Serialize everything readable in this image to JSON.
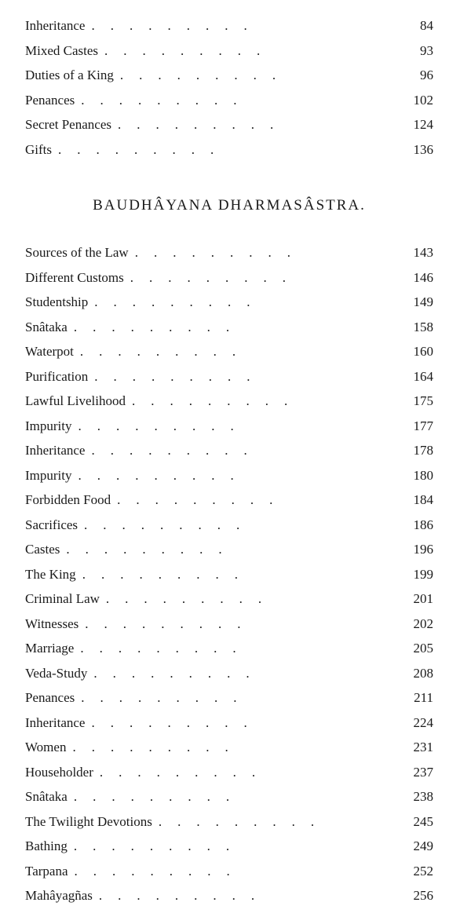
{
  "section1": {
    "entries": [
      {
        "title": "Inheritance",
        "page": "84"
      },
      {
        "title": "Mixed Castes",
        "page": "93"
      },
      {
        "title": "Duties of a King",
        "page": "96"
      },
      {
        "title": "Penances",
        "page": "102"
      },
      {
        "title": "Secret Penances",
        "page": "124"
      },
      {
        "title": "Gifts",
        "page": "136"
      }
    ]
  },
  "heading": "BAUDHÂYANA DHARMASÂSTRA.",
  "section2": {
    "entries": [
      {
        "title": "Sources of the Law",
        "page": "143"
      },
      {
        "title": "Different Customs",
        "page": "146"
      },
      {
        "title": "Studentship",
        "page": "149"
      },
      {
        "title": "Snâtaka",
        "page": "158"
      },
      {
        "title": "Waterpot",
        "page": "160"
      },
      {
        "title": "Purification",
        "page": "164"
      },
      {
        "title": "Lawful Livelihood",
        "page": "175"
      },
      {
        "title": "Impurity",
        "page": "177"
      },
      {
        "title": "Inheritance",
        "page": "178"
      },
      {
        "title": "Impurity",
        "page": "180"
      },
      {
        "title": "Forbidden Food",
        "page": "184"
      },
      {
        "title": "Sacrifices",
        "page": "186"
      },
      {
        "title": "Castes",
        "page": "196"
      },
      {
        "title": "The King",
        "page": "199"
      },
      {
        "title": "Criminal Law",
        "page": "201"
      },
      {
        "title": "Witnesses",
        "page": "202"
      },
      {
        "title": "Marriage",
        "page": "205"
      },
      {
        "title": "Veda-Study",
        "page": "208"
      },
      {
        "title": "Penances",
        "page": "211"
      },
      {
        "title": "Inheritance",
        "page": "224"
      },
      {
        "title": "Women",
        "page": "231"
      },
      {
        "title": "Householder",
        "page": "237"
      },
      {
        "title": "Snâtaka",
        "page": "238"
      },
      {
        "title": "The Twilight Devotions",
        "page": "245"
      },
      {
        "title": "Bathing",
        "page": "249"
      },
      {
        "title": "Tarpana",
        "page": "252"
      },
      {
        "title": "Mahâyagñas",
        "page": "256"
      }
    ]
  },
  "dot_leader": "........."
}
